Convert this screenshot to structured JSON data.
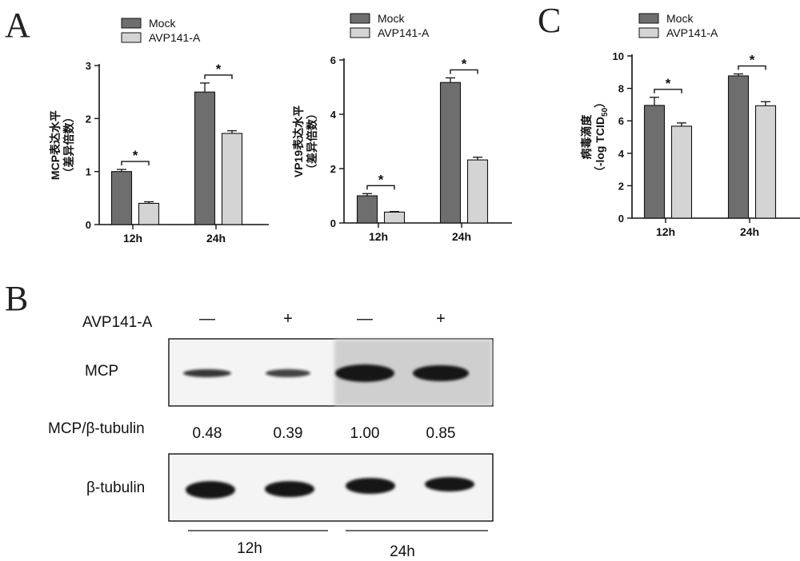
{
  "figure": {
    "panel_letters": {
      "a": "A",
      "b": "B",
      "c": "C"
    }
  },
  "chart_data": [
    {
      "type": "bar",
      "panel": "A",
      "categories": [
        "12h",
        "24h"
      ],
      "ylabel_line1": "MCP表达水平",
      "ylabel_line2": "（差异倍数）",
      "ylim": [
        0,
        3
      ],
      "yticks": [
        0,
        1,
        2,
        3
      ],
      "series": [
        {
          "name": "Mock",
          "values": [
            1.0,
            2.5
          ],
          "errors": [
            0.04,
            0.17
          ],
          "color": "#6e6e6e"
        },
        {
          "name": "AVP141-A",
          "values": [
            0.4,
            1.72
          ],
          "errors": [
            0.03,
            0.05
          ],
          "color": "#d4d4d4"
        }
      ],
      "significance": [
        "*",
        "*"
      ],
      "legend": "top-left"
    },
    {
      "type": "bar",
      "panel": "A",
      "categories": [
        "12h",
        "24h"
      ],
      "ylabel_line1": "VP19表达水平",
      "ylabel_line2": "（差异倍数）",
      "ylim": [
        0,
        6
      ],
      "yticks": [
        0,
        2,
        4,
        6
      ],
      "series": [
        {
          "name": "Mock",
          "values": [
            1.0,
            5.17
          ],
          "errors": [
            0.08,
            0.17
          ],
          "color": "#6e6e6e"
        },
        {
          "name": "AVP141-A",
          "values": [
            0.4,
            2.32
          ],
          "errors": [
            0.02,
            0.1
          ],
          "color": "#d4d4d4"
        }
      ],
      "significance": [
        "*",
        "*"
      ],
      "legend": "top-left"
    },
    {
      "type": "bar",
      "panel": "C",
      "categories": [
        "12h",
        "24h"
      ],
      "ylabel_line1": "病毒滴度",
      "ylabel_line2": "（-log TCID",
      "ylabel_sub": "50",
      "ylabel_close": "）",
      "ylim": [
        0,
        10
      ],
      "yticks": [
        0,
        2,
        4,
        6,
        8,
        10
      ],
      "series": [
        {
          "name": "Mock",
          "values": [
            6.95,
            8.77
          ],
          "errors": [
            0.5,
            0.12
          ],
          "color": "#6e6e6e"
        },
        {
          "name": "AVP141-A",
          "values": [
            5.67,
            6.93
          ],
          "errors": [
            0.2,
            0.25
          ],
          "color": "#d4d4d4"
        }
      ],
      "significance": [
        "*",
        "*"
      ],
      "legend": "top-left"
    }
  ],
  "western_blot": {
    "treatment_label": "AVP141-A",
    "treatment_signs": [
      "—",
      "+",
      "—",
      "+"
    ],
    "mcp_label": "MCP",
    "ratio_label": "MCP/β-tubulin",
    "ratios": [
      "0.48",
      "0.39",
      "1.00",
      "0.85"
    ],
    "tubulin_label": "β-tubulin",
    "time_groups": [
      "12h",
      "24h"
    ]
  }
}
